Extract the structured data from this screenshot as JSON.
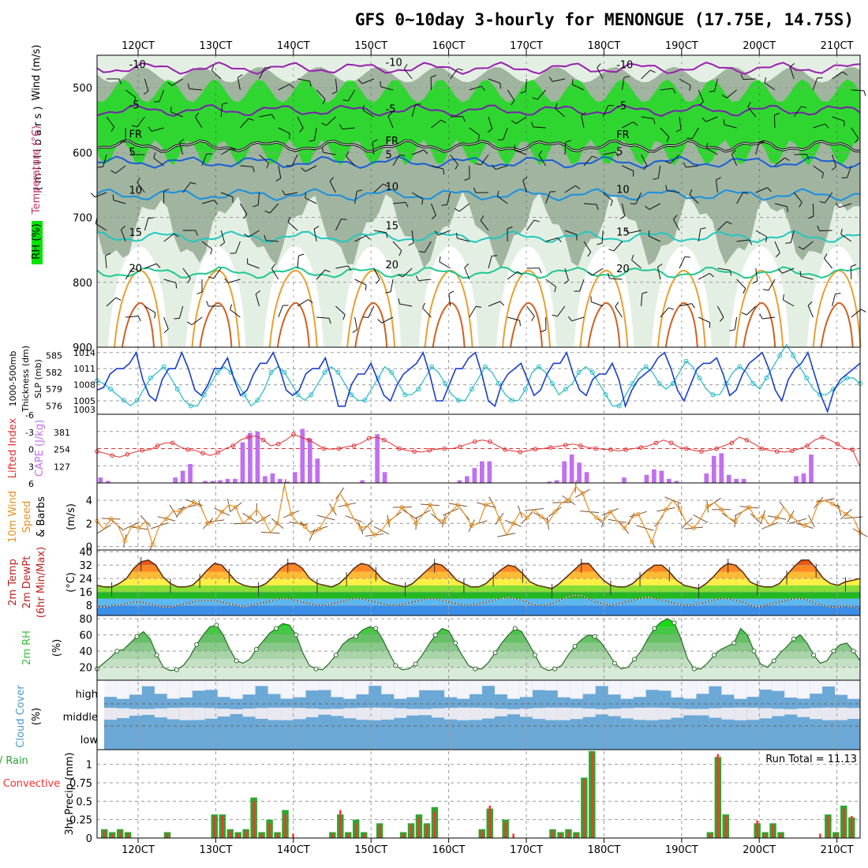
{
  "title": "GFS 0~10day 3-hourly for MENONGUE (17.75E, 14.75S)",
  "x_labels": [
    "120CT",
    "130CT",
    "140CT",
    "150CT",
    "160CT",
    "170CT",
    "180CT",
    "190CT",
    "200CT",
    "210CT"
  ],
  "colors": {
    "rh_dark": "#8aa08a",
    "rh_light": "#e4efe4",
    "rh_green": "#00e400",
    "sat_cover": "#6ba8d6",
    "precip_total": "#2ea62e",
    "precip_conv": "#ff3030",
    "slp": "#1a3fc8",
    "thickness": "#22b8c8",
    "cape": "#c070f0",
    "li": "#e03030",
    "wind10m": "#e89020",
    "rh2m": "#38c038",
    "grid": "#999999"
  },
  "chart_data": [
    {
      "type": "contour",
      "name": "upper-air",
      "ylabel_parts": [
        "Wind (m/s)",
        "Temperature (°C)",
        "RH (%)"
      ],
      "yunit": "( m i l l i b a r s )",
      "yticks": [
        500,
        600,
        700,
        800,
        900
      ],
      "ylim": [
        450,
        900
      ],
      "isotherms": [
        {
          "label": "-10",
          "p": 470,
          "color": "#9a1fb0"
        },
        {
          "label": "-5",
          "p": 535,
          "color": "#7a1fb0"
        },
        {
          "label": "FR",
          "p": 590,
          "color": "#000000"
        },
        {
          "label": "5",
          "p": 615,
          "color": "#1a5fd6"
        },
        {
          "label": "10",
          "p": 665,
          "color": "#1a90e0"
        },
        {
          "label": "15",
          "p": 730,
          "color": "#20c8c0"
        },
        {
          "label": "20",
          "p": 785,
          "color": "#20c890"
        }
      ]
    },
    {
      "type": "line",
      "name": "slp-thickness",
      "ylabel_left": [
        "1000-500mb",
        "Thickness (dm)"
      ],
      "ylabel_right": "SLP (mb)",
      "left_ticks": [
        576,
        579,
        582,
        585
      ],
      "right_ticks": [
        1005,
        1008,
        1011,
        1014
      ],
      "right_extra": "1003",
      "slp": [
        1007,
        1007.5,
        1010,
        1011,
        1011,
        1012,
        1014,
        1009,
        1006,
        1005,
        1009,
        1011,
        1011,
        1014,
        1011,
        1007,
        1006,
        1008,
        1011,
        1011,
        1013,
        1009,
        1006,
        1007,
        1010,
        1012,
        1012,
        1014,
        1011,
        1007,
        1006,
        1007,
        1010,
        1011,
        1011,
        1013,
        1009,
        1004,
        1004,
        1008,
        1010,
        1010,
        1012,
        1009,
        1006,
        1005,
        1008,
        1010,
        1011,
        1012,
        1014,
        1010,
        1005,
        1005,
        1008,
        1011,
        1011,
        1013,
        1014,
        1010,
        1005,
        1004,
        1008,
        1010,
        1011,
        1012,
        1009,
        1006,
        1007,
        1010,
        1012,
        1012,
        1014,
        1010,
        1007,
        1006,
        1009,
        1010,
        1010,
        1012,
        1009,
        1004,
        1007,
        1009,
        1010,
        1011,
        1013,
        1014,
        1011,
        1007,
        1005,
        1008,
        1011,
        1012,
        1012,
        1013,
        1010,
        1006,
        1007,
        1010,
        1012,
        1013,
        1014,
        1011,
        1007,
        1005,
        1009,
        1011,
        1012,
        1014,
        1010,
        1006,
        1003,
        1007,
        1009,
        1010,
        1011,
        1012
      ],
      "thickness": [
        580.5,
        580,
        579,
        578,
        577,
        576,
        577,
        579,
        581,
        582,
        583,
        581,
        579,
        577,
        576,
        576,
        578,
        580,
        582,
        583,
        582,
        580,
        578,
        576,
        577,
        579,
        582,
        583,
        582,
        580,
        578,
        577,
        578,
        580,
        582,
        583,
        582,
        580,
        578,
        577,
        577,
        579,
        581,
        583,
        582,
        580,
        578,
        578,
        579,
        581,
        583,
        582,
        580,
        578,
        577,
        577,
        579,
        581,
        583,
        582,
        580,
        578,
        577,
        577,
        579,
        582,
        583,
        582,
        580,
        578,
        579,
        580,
        582,
        583,
        582,
        580,
        578,
        576,
        576,
        578,
        580,
        582,
        583,
        582,
        580,
        579,
        580,
        582,
        584,
        583,
        581,
        579,
        578,
        578,
        580,
        582,
        583,
        582,
        580,
        579,
        581,
        583,
        585,
        587,
        585,
        583,
        581,
        579,
        578,
        578,
        579,
        580,
        581,
        581,
        580
      ],
      "slp_lim": [
        1002.5,
        1015
      ],
      "thk_lim": [
        574.5,
        586.5
      ]
    },
    {
      "type": "bar",
      "name": "cape-li",
      "ylabel_left": "Lifted Index",
      "ylabel_right": "CAPE (J/kg)",
      "li_ticks": [
        "-6",
        "-3",
        "0",
        "3",
        "6"
      ],
      "cape_ticks": [
        "381",
        "254",
        "127"
      ],
      "cape": [
        40,
        15,
        0,
        0,
        0,
        0,
        0,
        0,
        0,
        0,
        40,
        90,
        140,
        0,
        15,
        15,
        20,
        30,
        30,
        300,
        370,
        380,
        50,
        70,
        30,
        10,
        80,
        400,
        330,
        180,
        0,
        0,
        0,
        0,
        0,
        20,
        0,
        360,
        80,
        0,
        0,
        0,
        0,
        0,
        0,
        0,
        0,
        0,
        20,
        50,
        110,
        160,
        160,
        0,
        0,
        0,
        0,
        0,
        0,
        0,
        10,
        20,
        160,
        210,
        150,
        80,
        0,
        0,
        0,
        0,
        40,
        0,
        0,
        60,
        100,
        90,
        30,
        15,
        0,
        0,
        0,
        70,
        200,
        220,
        60,
        30,
        30,
        0,
        0,
        0,
        0,
        0,
        0,
        50,
        70,
        210,
        0,
        0,
        0,
        0,
        0,
        0
      ],
      "li": [
        0.5,
        0.8,
        1.2,
        1.5,
        1,
        0.6,
        0.3,
        0.2,
        -0.5,
        -1,
        -1,
        -0.3,
        0.2,
        0.3,
        0.8,
        1.2,
        0.7,
        0,
        -0.5,
        -1.5,
        -2,
        -2.2,
        -1.5,
        -0.5,
        -0.8,
        -1.5,
        -2.5,
        -2,
        -1.5,
        -0.8,
        0,
        0.1,
        0,
        -0.3,
        -0.5,
        -1,
        -1.8,
        -2,
        -1.5,
        -0.8,
        0,
        0.3,
        0.5,
        0.6,
        0.3,
        0.1,
        0,
        0,
        -0.3,
        -0.8,
        -1.2,
        -1.5,
        -1.2,
        -0.5,
        0.2,
        0.4,
        0.6,
        0.4,
        0.1,
        0,
        -0.2,
        -0.4,
        -0.6,
        -0.8,
        -0.5,
        -0.2,
        0,
        0.1,
        0.2,
        0.4,
        0.2,
        0,
        -0.2,
        -0.5,
        -1,
        -1.5,
        -1,
        -0.3,
        0,
        0.3,
        0.5,
        0.3,
        0,
        -0.5,
        -1,
        -2,
        -1.5,
        -0.8,
        0,
        0.3,
        0.5,
        0.6,
        0.4,
        0,
        -0.5,
        -1.5,
        -2,
        -1.5,
        -0.8,
        0,
        0.2,
        3.2
      ],
      "li_lim": [
        6,
        -6
      ],
      "cape_lim": [
        0,
        508
      ]
    },
    {
      "type": "line",
      "name": "wind-10m",
      "ylabel": [
        "10m Wind",
        "Speed",
        "& Barbs"
      ],
      "yunit": "(m/s)",
      "yticks": [
        0,
        2,
        4
      ],
      "ylim": [
        -0.3,
        5.5
      ],
      "speed": [
        2.2,
        1.5,
        2.4,
        1.8,
        0.5,
        1.8,
        1.6,
        2.2,
        0.2,
        1.8,
        2.4,
        3.1,
        3,
        3.4,
        3.8,
        3.4,
        2,
        2.2,
        3,
        3.6,
        3.4,
        2,
        2.5,
        3.2,
        2.4,
        1.2,
        2,
        5.3,
        2.8,
        2,
        1.7,
        1,
        1.5,
        2.5,
        3.2,
        4.6,
        3.6,
        2.4,
        1.6,
        1.8,
        1,
        1.4,
        2.2,
        2.6,
        3.4,
        2.8,
        2,
        2.8,
        3.6,
        2.4,
        2.2,
        3,
        3.6,
        2.8,
        1.8,
        2,
        3.6,
        3.8,
        2.4,
        1,
        2,
        3,
        2.5,
        3.2,
        2.6,
        2,
        3,
        3.8,
        4,
        5.2,
        4.6,
        3,
        2.5,
        2.2,
        3,
        2.2,
        1.6,
        2.4,
        2.8,
        1.6,
        0.4,
        2.2,
        3.2,
        4,
        3.2,
        2,
        1.6,
        2.4,
        3.5,
        3.8,
        3.2,
        2.5,
        2.2,
        3,
        3.4,
        2.4,
        2.6,
        1.8,
        2.5,
        3.4,
        2.6,
        2.2,
        1.8,
        2.2,
        3.8,
        4,
        3.7,
        3.2,
        2.8,
        2.5,
        1.2
      ]
    },
    {
      "type": "area",
      "name": "temp-2m",
      "ylabel": [
        "2m Temp",
        "2m DewPt",
        "(6hr Min/Max)"
      ],
      "yunit": "(°C)",
      "yticks": [
        8,
        16,
        24,
        32,
        40
      ],
      "ylim": [
        2,
        41
      ],
      "temp": [
        20,
        19,
        19,
        21,
        24,
        30,
        34,
        35,
        32,
        25,
        21,
        19,
        19,
        20,
        24,
        29,
        33,
        32,
        27,
        22,
        20,
        19,
        19,
        21,
        25,
        30,
        33,
        33,
        30,
        24,
        21,
        20,
        19,
        21,
        25,
        30,
        33,
        32,
        28,
        23,
        21,
        20,
        19,
        21,
        25,
        29,
        33,
        32,
        28,
        23,
        21,
        19,
        19,
        21,
        25,
        29,
        32,
        31,
        27,
        22,
        20,
        19,
        18,
        21,
        25,
        29,
        33,
        33,
        28,
        23,
        20,
        19,
        19,
        21,
        25,
        29,
        32,
        32,
        28,
        23,
        20,
        19,
        18,
        21,
        25,
        30,
        33,
        32,
        28,
        22,
        20,
        19,
        19,
        21,
        26,
        31,
        35,
        35,
        30,
        24,
        21,
        20,
        22,
        23,
        24
      ],
      "dewpt": [
        7,
        7,
        8,
        8,
        9,
        10,
        10,
        9,
        8,
        7,
        7,
        8,
        9,
        10,
        11,
        11,
        11,
        10,
        9,
        8,
        7,
        8,
        9,
        10,
        11,
        12,
        12,
        11,
        10,
        9,
        8,
        8,
        9,
        10,
        11,
        12,
        12,
        11,
        10,
        9,
        8,
        8,
        9,
        10,
        11,
        12,
        12,
        11,
        10,
        9,
        8,
        8,
        9,
        10,
        11,
        12,
        13,
        12,
        11,
        9,
        8,
        8,
        9,
        11,
        13,
        14,
        14,
        12,
        10,
        9,
        8,
        9,
        10,
        11,
        12,
        13,
        12,
        11,
        10,
        9,
        8,
        8,
        9,
        10,
        11,
        12,
        12,
        11,
        10,
        8,
        7,
        8,
        9,
        10,
        11,
        12,
        12,
        11,
        9,
        8,
        7,
        7,
        8,
        7,
        6
      ]
    },
    {
      "type": "area",
      "name": "rh-2m",
      "ylabel": "2m RH",
      "yunit": "(%)",
      "yticks": [
        20,
        40,
        60,
        80
      ],
      "ylim": [
        4,
        84
      ],
      "rh": [
        18,
        25,
        32,
        40,
        42,
        50,
        58,
        64,
        55,
        35,
        20,
        16,
        17,
        22,
        33,
        48,
        60,
        70,
        72,
        60,
        42,
        28,
        25,
        30,
        42,
        52,
        62,
        68,
        74,
        72,
        60,
        38,
        22,
        18,
        17,
        25,
        35,
        48,
        55,
        58,
        66,
        70,
        68,
        55,
        38,
        22,
        17,
        18,
        24,
        35,
        48,
        60,
        68,
        65,
        50,
        35,
        22,
        18,
        18,
        26,
        38,
        50,
        60,
        68,
        64,
        50,
        35,
        20,
        16,
        18,
        22,
        35,
        46,
        54,
        60,
        58,
        50,
        38,
        25,
        18,
        20,
        30,
        40,
        55,
        68,
        76,
        80,
        75,
        55,
        30,
        18,
        18,
        25,
        35,
        42,
        46,
        50,
        68,
        60,
        40,
        24,
        20,
        28,
        38,
        46,
        55,
        60,
        50,
        35,
        25,
        28,
        40,
        48,
        50,
        40,
        28
      ]
    },
    {
      "type": "step",
      "name": "cloud-cover",
      "ylabel": "Cloud Cover",
      "yunit": "(%)",
      "levels": [
        "high",
        "middle",
        "low"
      ]
    },
    {
      "type": "bar",
      "name": "precip-3hr",
      "ylabel": [
        "Total / Rain",
        "Convective"
      ],
      "yunit": "3hr Precip (mm)",
      "yticks": [
        "0",
        "0.25",
        "0.5",
        "0.75",
        "1"
      ],
      "ylim": [
        0,
        1.2
      ],
      "run_total_label": "Run Total = 11.13",
      "total": [
        0.12,
        0.08,
        0.12,
        0.08,
        0,
        0,
        0,
        0,
        0.08,
        0,
        0,
        0,
        0,
        0,
        0.32,
        0.32,
        0.12,
        0.08,
        0.12,
        0.55,
        0.08,
        0.25,
        0.08,
        0.38,
        0,
        0,
        0,
        0,
        0,
        0.08,
        0.32,
        0.08,
        0.25,
        0.08,
        0,
        0.2,
        0,
        0,
        0.08,
        0.2,
        0.32,
        0.2,
        0.42,
        0,
        0,
        0,
        0,
        0,
        0.12,
        0.4,
        0,
        0.25,
        0,
        0,
        0,
        0,
        0,
        0.12,
        0.08,
        0.12,
        0.08,
        0.82,
        1.18,
        0,
        0,
        0,
        0,
        0,
        0,
        0,
        0,
        0,
        0,
        0,
        0,
        0,
        0,
        0.08,
        1.1,
        0.32,
        0,
        0,
        0,
        0.2,
        0.08,
        0.2,
        0.08,
        0,
        0,
        0,
        0,
        0,
        0.32,
        0.08,
        0.44,
        0.28
      ],
      "conv": [
        0.1,
        0.06,
        0.1,
        0.06,
        0,
        0,
        0,
        0,
        0.06,
        0,
        0,
        0,
        0,
        0,
        0.3,
        0.3,
        0.1,
        0.06,
        0.1,
        0.5,
        0.06,
        0.2,
        0.06,
        0.32,
        0.06,
        0,
        0,
        0,
        0,
        0.06,
        0.38,
        0.06,
        0.2,
        0.06,
        0,
        0.18,
        0,
        0,
        0.06,
        0.18,
        0.28,
        0.18,
        0.36,
        0,
        0,
        0,
        0,
        0,
        0.1,
        0.44,
        0,
        0.22,
        0.06,
        0,
        0,
        0,
        0,
        0.1,
        0.06,
        0.1,
        0.06,
        0.8,
        1.16,
        0,
        0,
        0,
        0,
        0,
        0,
        0,
        0,
        0,
        0,
        0,
        0,
        0,
        0,
        0.06,
        1.14,
        0.3,
        0,
        0,
        0,
        0.24,
        0.06,
        0.18,
        0.06,
        0,
        0,
        0,
        0,
        0.06,
        0.3,
        0.06,
        0.4,
        0.3
      ]
    }
  ]
}
